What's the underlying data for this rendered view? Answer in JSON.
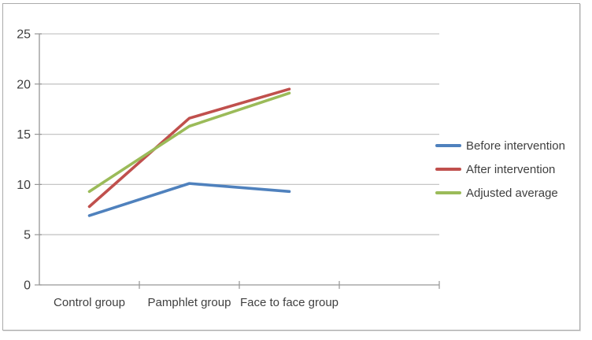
{
  "frame": {
    "border_color": "#ababab",
    "background": "#ffffff"
  },
  "chart_data": {
    "type": "line",
    "title": "",
    "xlabel": "",
    "ylabel": "",
    "categories": [
      "Control group",
      "Pamphlet group",
      "Face to face group"
    ],
    "series": [
      {
        "name": "Before intervention",
        "color": "#4F81BD",
        "values": [
          6.9,
          10.1,
          9.3
        ]
      },
      {
        "name": "After intervention",
        "color": "#C0504D",
        "values": [
          7.8,
          16.6,
          19.5
        ]
      },
      {
        "name": "Adjusted average",
        "color": "#9BBB59",
        "values": [
          9.3,
          15.8,
          19.1
        ]
      }
    ],
    "ylim": [
      0,
      25
    ],
    "y_ticks": [
      0,
      5,
      10,
      15,
      20,
      25
    ],
    "x_slots": 4,
    "grid": true,
    "legend_position": "right-middle",
    "colors": {
      "gridline": "#c6c6c6",
      "axis": "#969696",
      "tick_text": "#3f3f3f"
    }
  }
}
